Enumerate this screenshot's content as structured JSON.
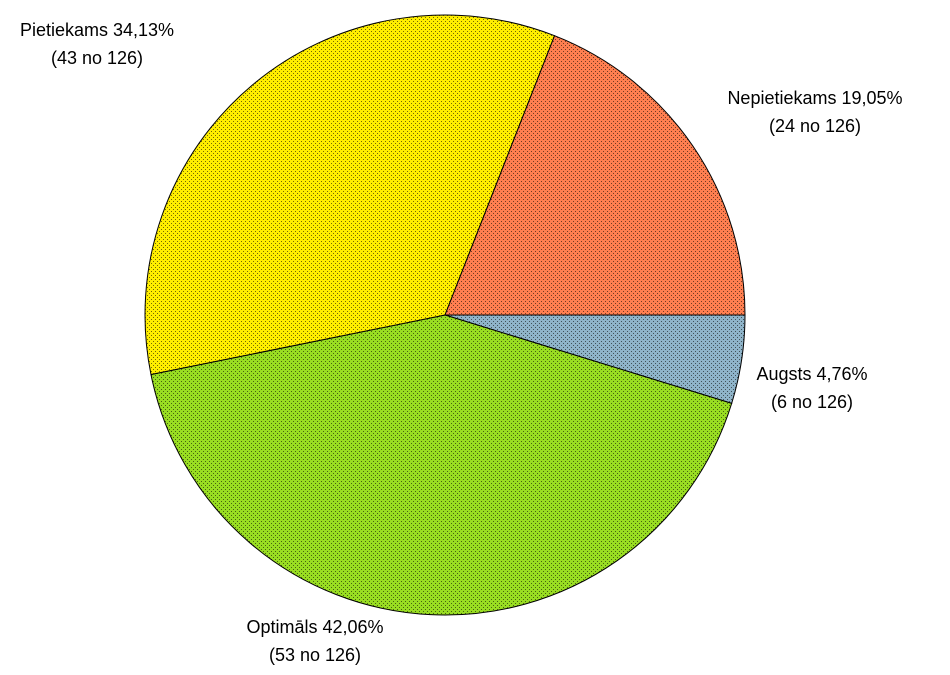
{
  "chart_data": {
    "type": "pie",
    "categories": [
      "Augsts",
      "Optimāls",
      "Pietiekams",
      "Nepietiekams"
    ],
    "values": [
      4.76,
      42.06,
      34.13,
      19.05
    ],
    "value_labels": [
      "4,76%",
      "42,06%",
      "34,13%",
      "19,05%"
    ],
    "count_labels": [
      "(6 no 126)",
      "(53 no 126)",
      "(43 no 126)",
      "(24 no 126)"
    ],
    "colors": [
      "#8fb4c9",
      "#99dd22",
      "#ffee00",
      "#ff7f50"
    ]
  }
}
